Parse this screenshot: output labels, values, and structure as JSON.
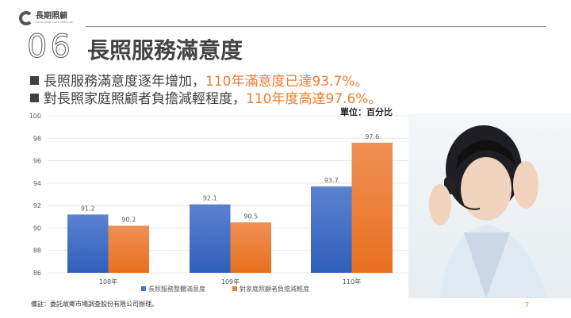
{
  "header": {
    "logo_text": "長期照顧",
    "logo_sub": "LONG TERM CARE SERVICES",
    "section_number": "06",
    "title": "長照服務滿意度"
  },
  "bullets": [
    {
      "text": "長照服務滿意度逐年增加，",
      "highlight": "110年滿意度已達93.7%。"
    },
    {
      "text": "對長照家庭照顧者負擔減輕程度，",
      "highlight": "110年度高達97.6%。"
    }
  ],
  "unit_label": "單位：百分比",
  "chart_data": {
    "type": "bar",
    "categories": [
      "108年",
      "109年",
      "110年"
    ],
    "series": [
      {
        "name": "長照服務整體滿意度",
        "values": [
          91.2,
          92.1,
          93.7
        ],
        "color": "#4472c4"
      },
      {
        "name": "對家庭照顧者負擔減輕度",
        "values": [
          90.2,
          90.5,
          97.6
        ],
        "color": "#ed7d31"
      }
    ],
    "ylim": [
      86,
      100
    ],
    "yticks": [
      86,
      88,
      90,
      92,
      94,
      96,
      98,
      100
    ],
    "grid": true,
    "legend": "bottom"
  },
  "footnote": "備註：委託故鄉市場調查股份有限公司辦理。",
  "page_number": "7"
}
